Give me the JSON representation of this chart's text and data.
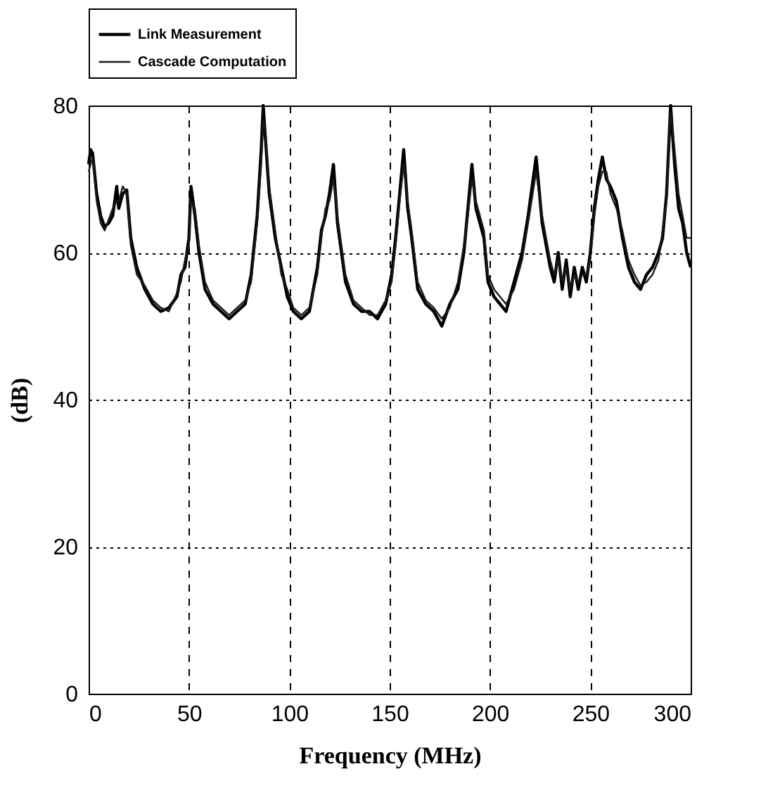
{
  "chart_data": {
    "type": "line",
    "xlabel": "Frequency (MHz)",
    "ylabel": "(dB)",
    "xlim": [
      0,
      300
    ],
    "ylim": [
      0,
      80
    ],
    "xticks": [
      0,
      50,
      100,
      150,
      200,
      250,
      300
    ],
    "yticks": [
      0,
      20,
      40,
      60,
      80
    ],
    "grid": true,
    "legend": "top",
    "line_style": "solid",
    "marker": "none",
    "x": [
      0,
      1,
      2,
      4,
      6,
      8,
      10,
      12,
      14,
      15,
      17,
      19,
      21,
      24,
      28,
      32,
      36,
      40,
      44,
      46,
      48,
      50,
      51,
      53,
      55,
      58,
      62,
      66,
      70,
      74,
      78,
      81,
      84,
      86,
      87,
      88,
      90,
      93,
      96,
      99,
      102,
      106,
      110,
      114,
      116,
      118,
      120,
      122,
      124,
      126,
      128,
      132,
      136,
      140,
      144,
      148,
      151,
      153,
      155,
      157,
      159,
      161,
      164,
      168,
      172,
      176,
      180,
      184,
      187,
      189,
      191,
      193,
      195,
      197,
      199,
      202,
      205,
      208,
      212,
      216,
      219,
      223,
      226,
      228,
      230,
      232,
      234,
      236,
      238,
      240,
      242,
      244,
      246,
      248,
      250,
      252,
      254,
      256,
      258,
      260,
      263,
      266,
      269,
      272,
      275,
      278,
      281,
      284,
      286,
      288,
      290,
      292,
      294,
      296,
      298,
      300
    ],
    "series": [
      {
        "name": "Link Measurement",
        "color": "#000000",
        "values": [
          72,
          74,
          73.5,
          68,
          65,
          63.5,
          64,
          65,
          69,
          66,
          68,
          68.5,
          62,
          58,
          55,
          53,
          52,
          52.5,
          54,
          57,
          58,
          62,
          69,
          65,
          60,
          55,
          53,
          52,
          51,
          52,
          53,
          57,
          65,
          74,
          80,
          76,
          68,
          62,
          58,
          54,
          52,
          51,
          52,
          58,
          63,
          65,
          68,
          72,
          64,
          60,
          56,
          53,
          52,
          52,
          51,
          53,
          57,
          62,
          68,
          74,
          66,
          62,
          55,
          53,
          52,
          50,
          53,
          55,
          60,
          66,
          72,
          66,
          64,
          62,
          56,
          54,
          53,
          52,
          56,
          60,
          65,
          73,
          64,
          61,
          58,
          56,
          60,
          55,
          59,
          54,
          58,
          55,
          58,
          56,
          60,
          66,
          70,
          73,
          70,
          69,
          67,
          62,
          58,
          56,
          55,
          57,
          58,
          60,
          62,
          68,
          80,
          72,
          66,
          64,
          60,
          58
        ]
      },
      {
        "name": "Cascade Computation",
        "color": "#1a1a1a",
        "values": [
          71,
          72,
          73,
          67,
          64,
          63,
          64.5,
          66,
          67,
          67,
          69,
          68,
          61,
          57,
          55.5,
          53.5,
          52.5,
          52,
          54.5,
          56,
          59,
          61,
          67,
          66,
          61,
          56,
          53.5,
          52.5,
          51.5,
          52.5,
          53.5,
          56,
          64,
          72,
          78,
          77,
          69,
          63,
          57,
          55,
          52.5,
          51.5,
          52.5,
          57,
          62,
          66,
          67,
          70,
          65,
          61,
          57,
          53.5,
          52.5,
          51.5,
          51.5,
          53.5,
          56,
          61,
          67,
          72,
          67,
          63,
          56,
          53.5,
          52.5,
          51,
          52.5,
          56,
          61,
          65,
          70,
          67,
          65,
          63,
          57,
          55,
          54,
          53,
          55,
          59,
          64,
          71,
          65,
          62,
          59,
          57,
          59,
          56,
          58,
          55,
          57,
          56,
          57,
          57,
          59,
          65,
          69,
          71,
          71,
          68,
          66,
          63,
          59,
          57,
          55.5,
          56,
          57,
          59,
          63,
          67,
          79,
          74,
          68,
          65,
          62,
          62
        ]
      }
    ]
  }
}
